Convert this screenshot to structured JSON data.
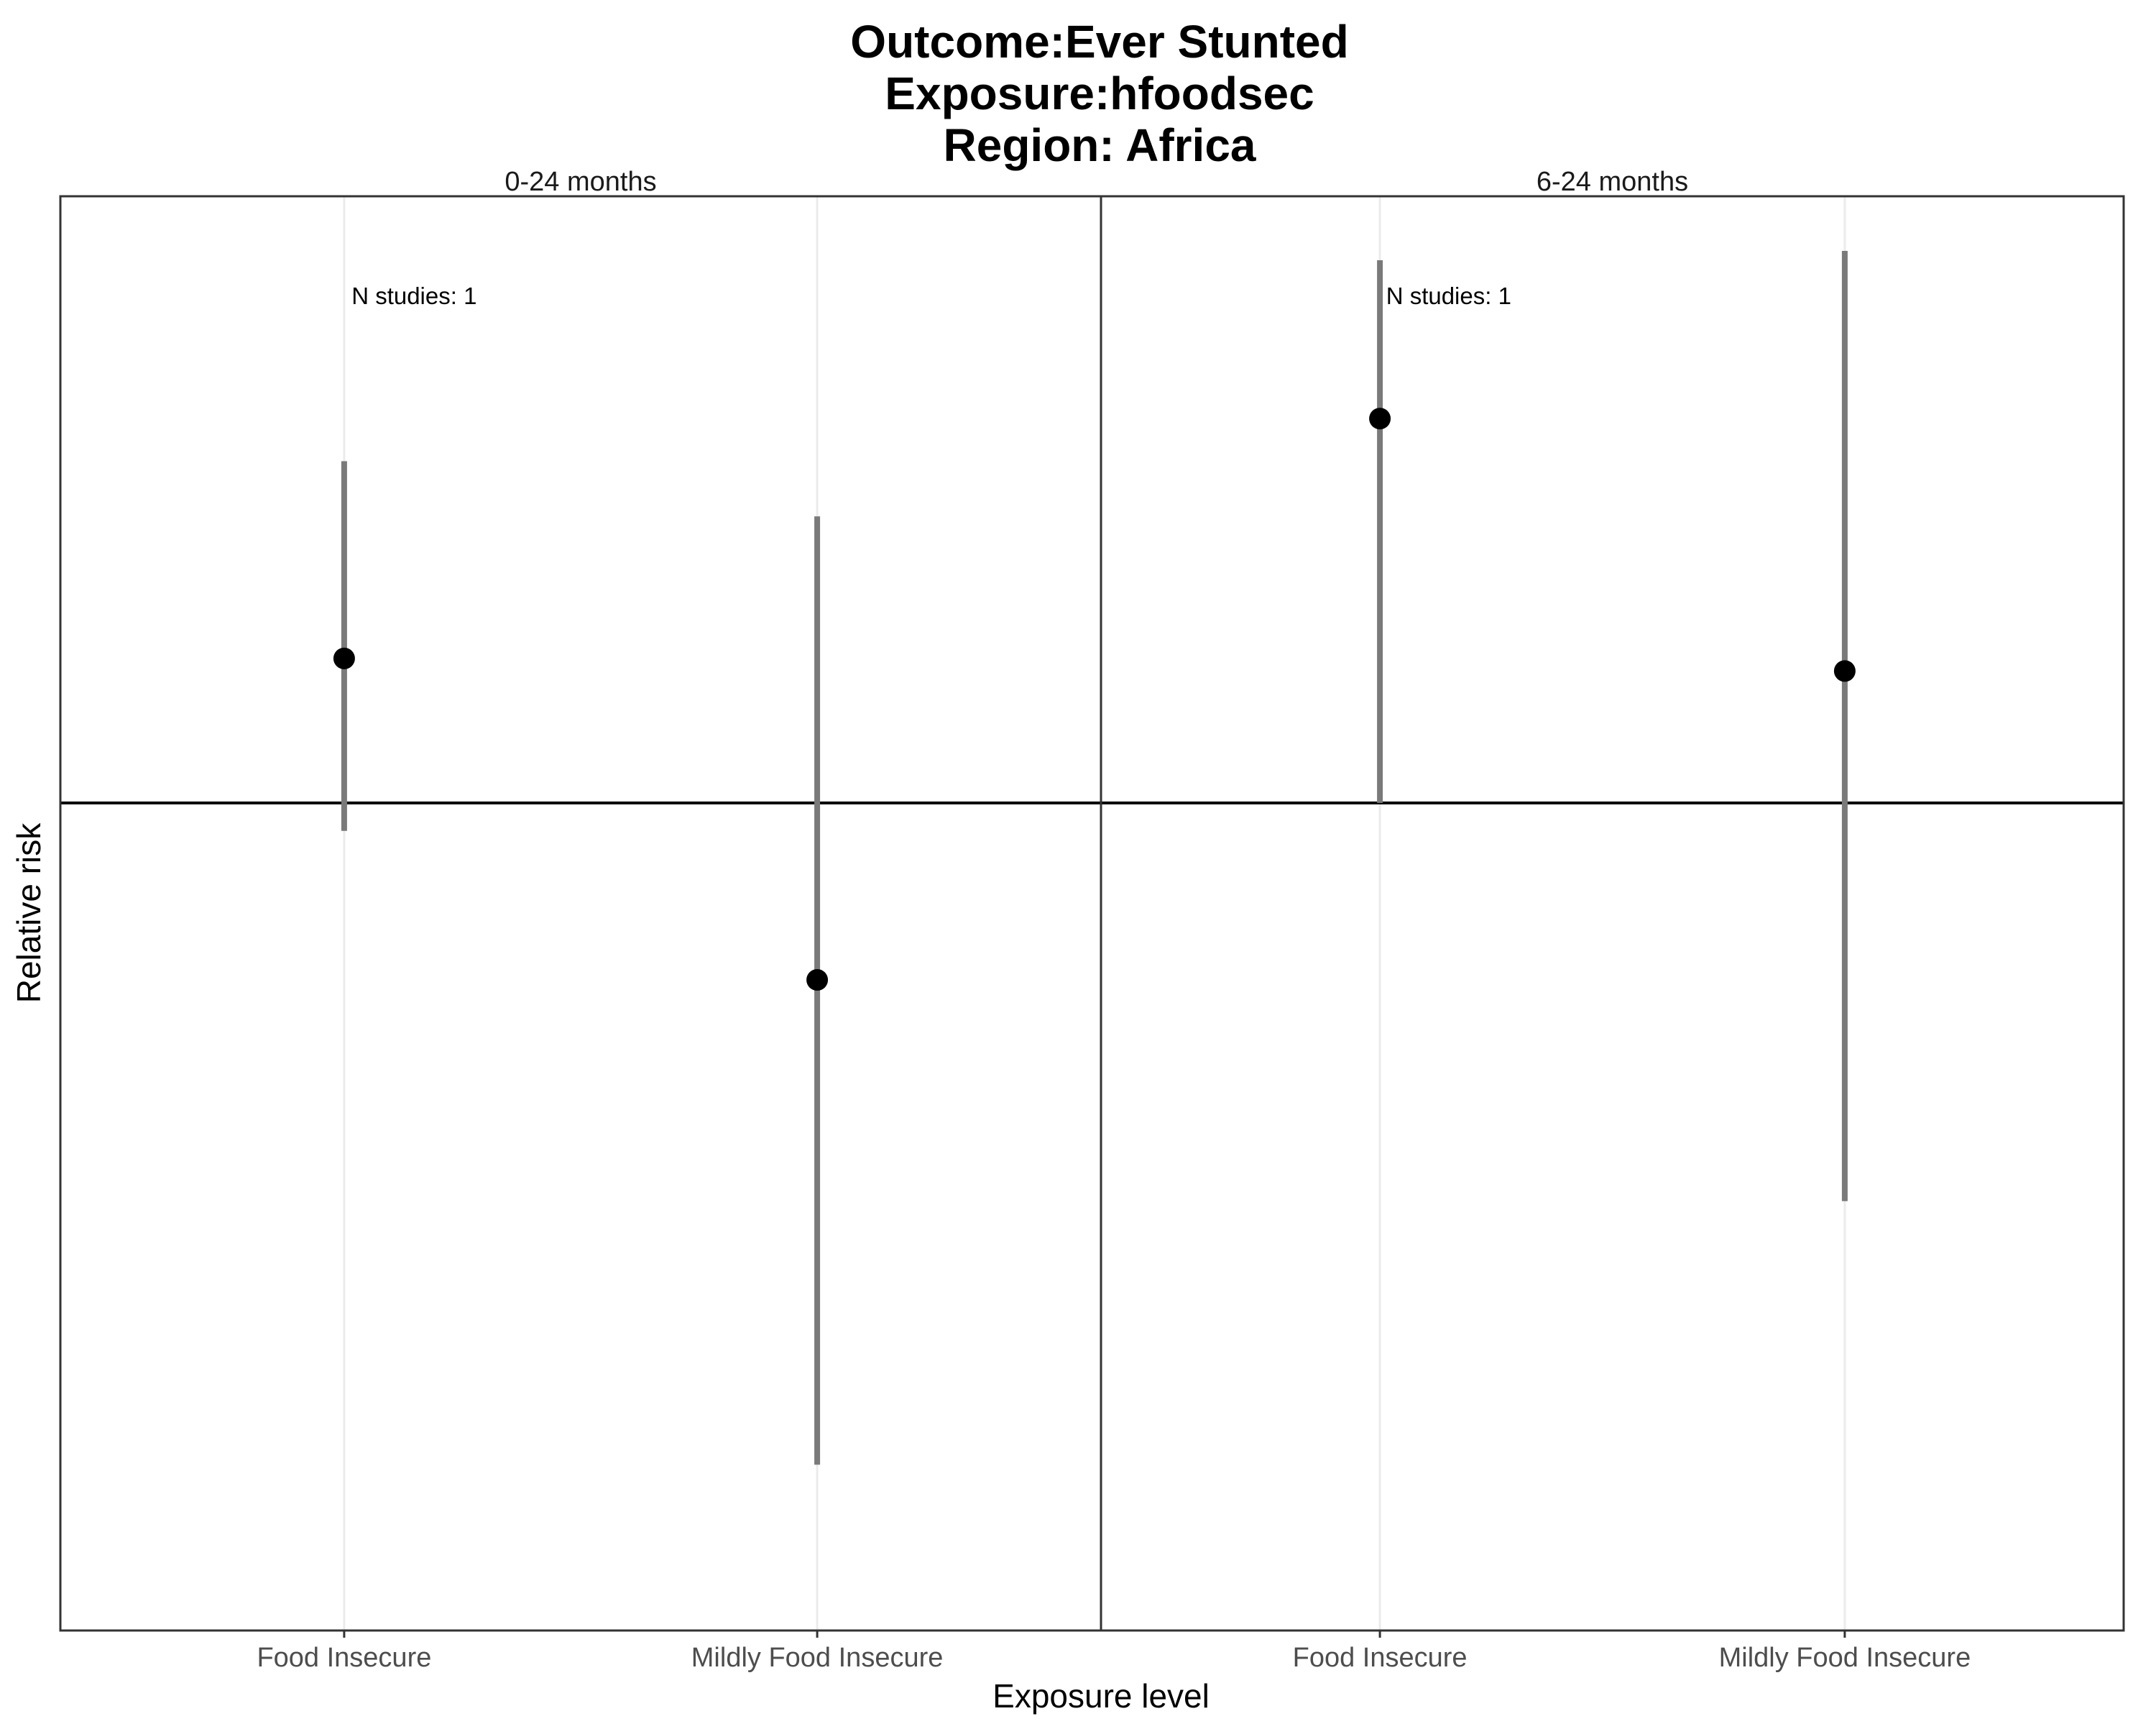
{
  "chart_data": {
    "type": "errorbar",
    "title_lines": [
      "Outcome:Ever Stunted",
      "Exposure:hfoodsec",
      "Region: Africa"
    ],
    "xlabel": "Exposure level",
    "ylabel": "Relative risk",
    "categories": [
      "Food Insecure",
      "Mildly Food Insecure"
    ],
    "reference_line": 1.0,
    "ylim": [
      0.55,
      1.55
    ],
    "y_scale": "log",
    "grid": "vertical major only",
    "facets": [
      {
        "label": "0-24 months",
        "annotation": "N studies: 1",
        "points": [
          {
            "category": "Food Insecure",
            "estimate": 1.11,
            "lower": 0.98,
            "upper": 1.28
          },
          {
            "category": "Mildly Food Insecure",
            "estimate": 0.88,
            "lower": 0.62,
            "upper": 1.23
          }
        ]
      },
      {
        "label": "6-24 months",
        "annotation": "N studies: 1",
        "points": [
          {
            "category": "Food Insecure",
            "estimate": 1.32,
            "lower": 1.0,
            "upper": 1.48
          },
          {
            "category": "Mildly Food Insecure",
            "estimate": 1.1,
            "lower": 0.75,
            "upper": 1.49
          }
        ]
      }
    ],
    "colors": {
      "point": "#000000",
      "ci": "#7a7a7a",
      "grid": "#ebebeb",
      "frame": "#333333",
      "reference": "#000000"
    }
  }
}
